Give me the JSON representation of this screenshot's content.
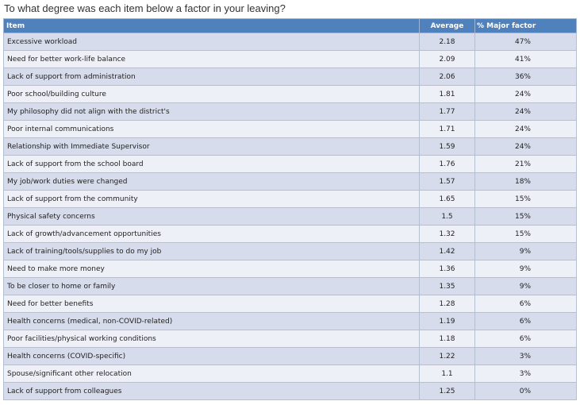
{
  "question": "To what degree was each item below a factor in your leaving?",
  "chart_data": {
    "type": "table",
    "columns": [
      "Item",
      "Average",
      "% Major factor"
    ],
    "rows": [
      {
        "item": "Excessive workload",
        "average": "2.18",
        "major": "47%"
      },
      {
        "item": "Need for better work-life balance",
        "average": "2.09",
        "major": "41%"
      },
      {
        "item": "Lack of support from administration",
        "average": "2.06",
        "major": "36%"
      },
      {
        "item": "Poor school/building culture",
        "average": "1.81",
        "major": "24%"
      },
      {
        "item": "My philosophy did not align with the district's",
        "average": "1.77",
        "major": "24%"
      },
      {
        "item": "Poor internal communications",
        "average": "1.71",
        "major": "24%"
      },
      {
        "item": "Relationship with Immediate Supervisor",
        "average": "1.59",
        "major": "24%"
      },
      {
        "item": "Lack of support from the school board",
        "average": "1.76",
        "major": "21%"
      },
      {
        "item": "My job/work duties were changed",
        "average": "1.57",
        "major": "18%"
      },
      {
        "item": "Lack of support from the community",
        "average": "1.65",
        "major": "15%"
      },
      {
        "item": "Physical safety concerns",
        "average": "1.5",
        "major": "15%"
      },
      {
        "item": "Lack of growth/advancement opportunities",
        "average": "1.32",
        "major": "15%"
      },
      {
        "item": "Lack of training/tools/supplies to do my job",
        "average": "1.42",
        "major": "9%"
      },
      {
        "item": "Need to make more money",
        "average": "1.36",
        "major": "9%"
      },
      {
        "item": "To be closer to home or family",
        "average": "1.35",
        "major": "9%"
      },
      {
        "item": "Need for better benefits",
        "average": "1.28",
        "major": "6%"
      },
      {
        "item": "Health concerns (medical, non-COVID-related)",
        "average": "1.19",
        "major": "6%"
      },
      {
        "item": "Poor facilities/physical working conditions",
        "average": "1.18",
        "major": "6%"
      },
      {
        "item": "Health concerns (COVID-specific)",
        "average": "1.22",
        "major": "3%"
      },
      {
        "item": "Spouse/significant other relocation",
        "average": "1.1",
        "major": "3%"
      },
      {
        "item": "Lack of support from colleagues",
        "average": "1.25",
        "major": "0%"
      }
    ]
  },
  "colors": {
    "header": "#4f81bd",
    "row_odd": "#d6dcec",
    "row_even": "#edf0f7"
  }
}
